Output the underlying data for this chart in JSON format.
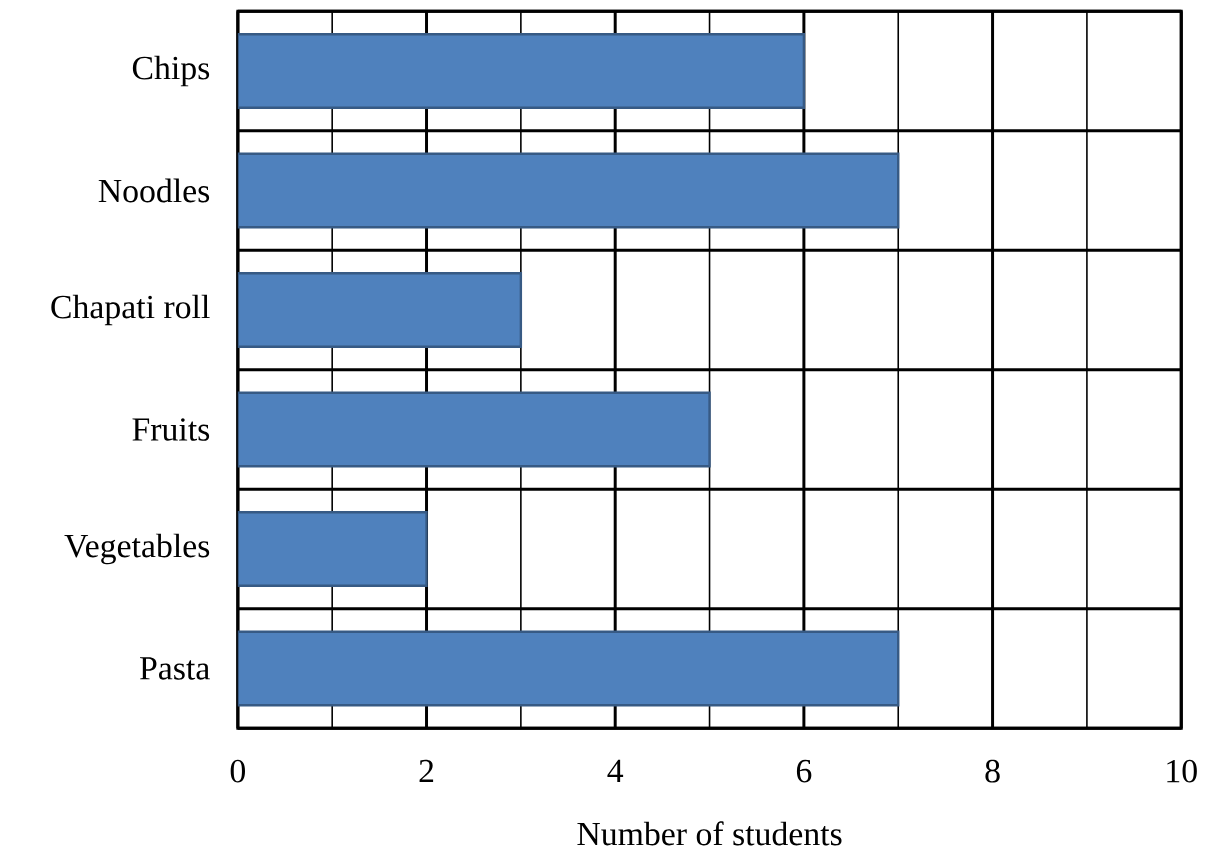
{
  "chart_data": {
    "type": "bar",
    "orientation": "horizontal",
    "xlabel": "Number of students",
    "categories": [
      "Chips",
      "Noodles",
      "Chapati roll",
      "Fruits",
      "Vegetables",
      "Pasta"
    ],
    "values": [
      6,
      7,
      3,
      5,
      2,
      7
    ],
    "color": "#4f81bd",
    "xlim": [
      0,
      10
    ],
    "xticks": [
      0,
      {
        "value": 1,
        "label": null
      },
      2,
      {
        "value": 3,
        "label": null
      },
      4,
      {
        "value": 5,
        "label": null
      },
      6,
      {
        "value": 7,
        "label": null
      },
      8,
      {
        "value": 9,
        "label": null
      },
      10
    ],
    "grid": true
  }
}
